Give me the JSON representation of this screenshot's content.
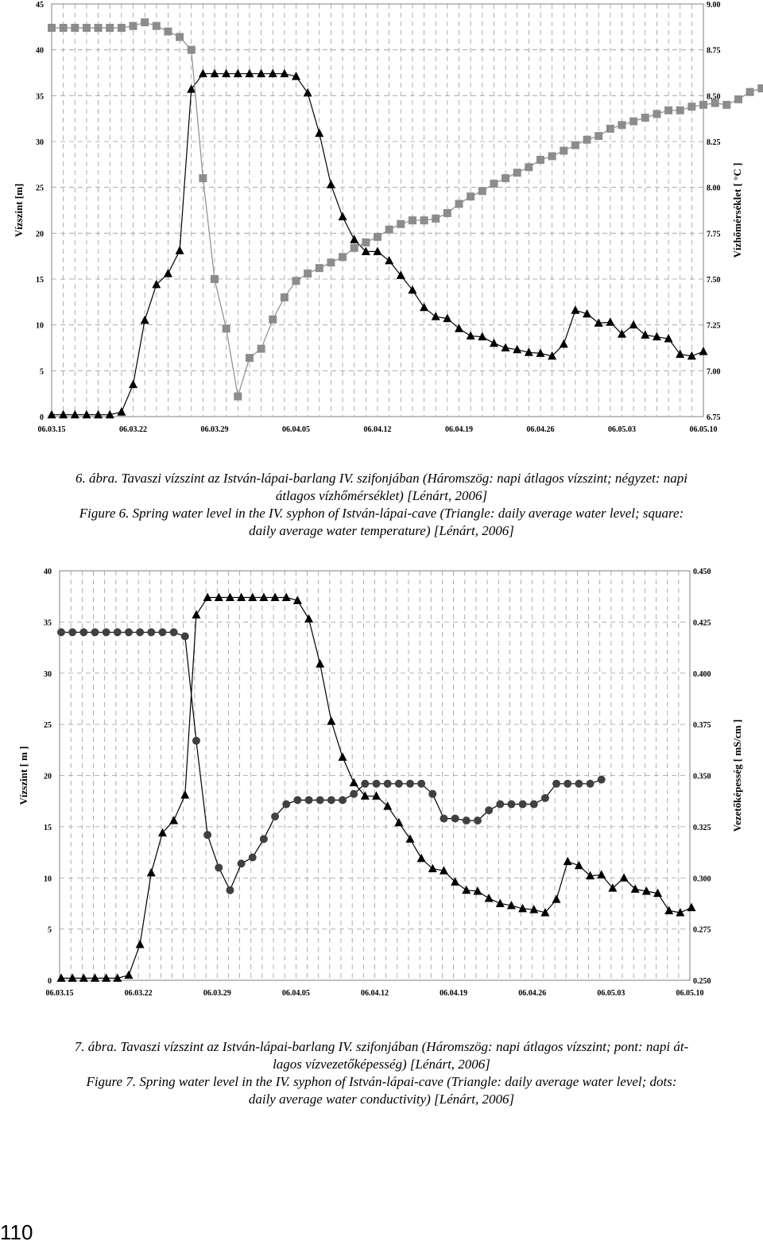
{
  "chart_data": [
    {
      "type": "line",
      "ylabel": "Vízszint [m]",
      "y2label": "Vízhőmérséklet [ °C ]",
      "ylim": [
        0,
        45
      ],
      "y2lim": [
        6.75,
        9.0
      ],
      "x_ticks": [
        "06.03.15",
        "06.03.22",
        "06.03.29",
        "06.04.05",
        "06.04.12",
        "06.04.19",
        "06.04.26",
        "06.05.03",
        "06.05.10"
      ],
      "y_ticks": [
        0,
        5,
        10,
        15,
        20,
        25,
        30,
        35,
        40,
        45
      ],
      "y2_ticks": [
        "6.75",
        "7.00",
        "7.25",
        "7.50",
        "7.75",
        "8.00",
        "8.25",
        "8.50",
        "8.75",
        "9.00"
      ],
      "series": [
        {
          "color": "#000000",
          "marker": "triangle",
          "axis": "left",
          "values": [
            0.2,
            0.2,
            0.2,
            0.2,
            0.2,
            0.2,
            0.5,
            3.5,
            10.5,
            14.4,
            15.6,
            18.1,
            35.7,
            37.4,
            37.4,
            37.4,
            37.4,
            37.4,
            37.4,
            37.4,
            37.4,
            37.1,
            35.3,
            30.9,
            25.3,
            21.8,
            19.3,
            18.0,
            18.0,
            17.0,
            15.4,
            13.8,
            11.9,
            10.9,
            10.7,
            9.6,
            8.8,
            8.7,
            8.0,
            7.5,
            7.3,
            7.0,
            6.9,
            6.6,
            7.9,
            11.6,
            11.2,
            10.2,
            10.3,
            9.0,
            10.0,
            8.9,
            8.7,
            8.5,
            6.8,
            6.6,
            7.1
          ]
        },
        {
          "color": "#808080",
          "marker": "square",
          "axis": "right",
          "values": [
            8.87,
            8.87,
            8.87,
            8.87,
            8.87,
            8.87,
            8.87,
            8.88,
            8.9,
            8.88,
            8.85,
            8.82,
            8.75,
            8.05,
            7.5,
            7.23,
            6.86,
            7.07,
            7.12,
            7.28,
            7.4,
            7.49,
            7.53,
            7.56,
            7.59,
            7.62,
            7.67,
            7.7,
            7.73,
            7.77,
            7.8,
            7.82,
            7.82,
            7.83,
            7.86,
            7.91,
            7.95,
            7.98,
            8.02,
            8.05,
            8.08,
            8.11,
            8.15,
            8.17,
            8.2,
            8.23,
            8.26,
            8.28,
            8.32,
            8.34,
            8.36,
            8.38,
            8.4,
            8.42,
            8.42,
            8.44,
            8.45,
            8.46,
            8.45,
            8.48,
            8.52,
            8.54,
            8.55,
            8.57,
            8.58,
            8.59,
            8.6,
            8.6,
            8.6
          ]
        }
      ]
    },
    {
      "type": "line",
      "ylabel": "Vízszint [ m ]",
      "y2label": "Vezetőképesség [ mS/cm ]",
      "ylim": [
        0,
        40
      ],
      "y2lim": [
        0.25,
        0.45
      ],
      "x_ticks": [
        "06.03.15",
        "06.03.22",
        "06.03.29",
        "06.04.05",
        "06.04.12",
        "06.04.19",
        "06.04.26",
        "06.05.03",
        "06.05.10"
      ],
      "y_ticks": [
        0,
        5,
        10,
        15,
        20,
        25,
        30,
        35,
        40
      ],
      "y2_ticks": [
        "0.250",
        "0.275",
        "0.300",
        "0.325",
        "0.350",
        "0.375",
        "0.400",
        "0.425",
        "0.450"
      ],
      "series": [
        {
          "color": "#000000",
          "marker": "triangle",
          "axis": "left",
          "values": [
            0.2,
            0.2,
            0.2,
            0.2,
            0.2,
            0.2,
            0.5,
            3.5,
            10.5,
            14.4,
            15.6,
            18.1,
            35.7,
            37.4,
            37.4,
            37.4,
            37.4,
            37.4,
            37.4,
            37.4,
            37.4,
            37.1,
            35.3,
            30.9,
            25.3,
            21.8,
            19.3,
            18.0,
            18.0,
            17.0,
            15.4,
            13.8,
            11.9,
            10.9,
            10.7,
            9.6,
            8.8,
            8.7,
            8.0,
            7.5,
            7.3,
            7.0,
            6.9,
            6.6,
            7.9,
            11.6,
            11.2,
            10.2,
            10.3,
            9.0,
            10.0,
            8.9,
            8.7,
            8.5,
            6.8,
            6.6,
            7.1
          ]
        },
        {
          "color": "#404040",
          "marker": "dot",
          "axis": "right",
          "values": [
            0.42,
            0.42,
            0.42,
            0.42,
            0.42,
            0.42,
            0.42,
            0.42,
            0.42,
            0.42,
            0.42,
            0.418,
            0.367,
            0.321,
            0.305,
            0.294,
            0.307,
            0.31,
            0.319,
            0.33,
            0.336,
            0.338,
            0.338,
            0.338,
            0.338,
            0.338,
            0.341,
            0.346,
            0.346,
            0.346,
            0.346,
            0.346,
            0.346,
            0.341,
            0.329,
            0.329,
            0.328,
            0.328,
            0.333,
            0.336,
            0.336,
            0.336,
            0.336,
            0.339,
            0.346,
            0.346,
            0.346,
            0.346,
            0.348
          ]
        }
      ]
    }
  ],
  "captions": {
    "fig6_hu_line1": "6. ábra. Tavaszi vízszint az István-lápai-barlang IV. szifonjában (Háromszög: napi átlagos vízszint; négyzet: napi",
    "fig6_hu_line2": "átlagos vízhőmérséklet) [Lénárt, 2006]",
    "fig6_en_line1": "Figure 6. Spring water level in the IV. syphon of István-lápai-cave (Triangle: daily average water level; square:",
    "fig6_en_line2": "daily average water temperature) [Lénárt, 2006]",
    "fig7_hu_line1": "7. ábra. Tavaszi vízszint az István-lápai-barlang IV. szifonjában (Háromszög: napi átlagos vízszint; pont: napi át-",
    "fig7_hu_line2": "lagos vízvezetőképesség) [Lénárt, 2006]",
    "fig7_en_line1": "Figure 7. Spring water level in the IV. syphon of István-lápai-cave (Triangle: daily average water level; dots:",
    "fig7_en_line2": "daily average water conductivity) [Lénárt, 2006]"
  },
  "page_number": "110"
}
